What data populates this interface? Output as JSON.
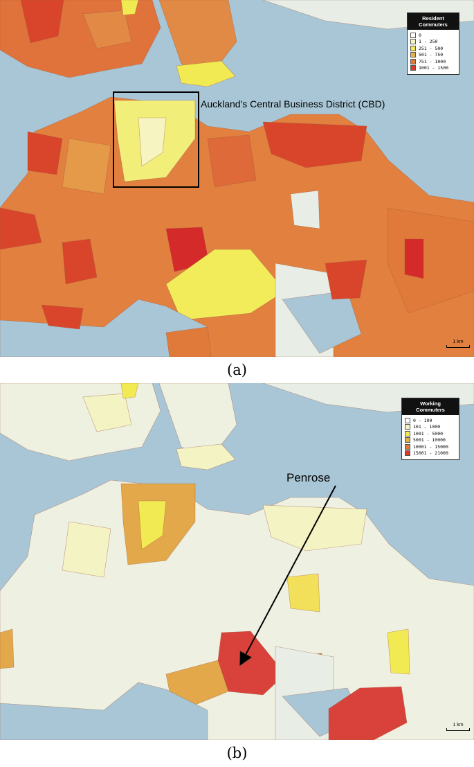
{
  "panel_a": {
    "legend": {
      "title": "Resident Commuters",
      "items": [
        "0",
        "1 - 250",
        "251 - 500",
        "501 - 750",
        "751 - 1000",
        "1001 - 1500"
      ]
    },
    "annotation": "Auckland's Central Business District (CBD)",
    "scale": "1 km",
    "caption": "(a)"
  },
  "panel_b": {
    "legend": {
      "title": "Working Commuters",
      "items": [
        "0 - 100",
        "101 - 1000",
        "1001 - 5000",
        "5001 - 10000",
        "10001 - 15000",
        "15001 - 21000"
      ]
    },
    "annotation": "Penrose",
    "scale": "1 km",
    "caption": "(b)"
  }
}
